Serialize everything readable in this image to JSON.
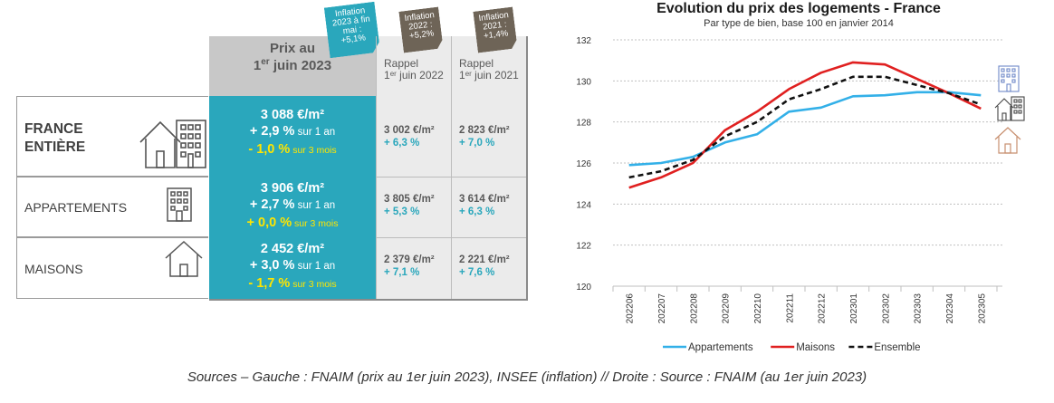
{
  "table": {
    "header_main_line1": "Prix au",
    "header_main_line2_num": "1",
    "header_main_line2_sup": "er",
    "header_main_line2_rest": " juin 2023",
    "rappel_2022_line1": "Rappel",
    "rappel_2022_num": "1",
    "rappel_2022_sup": "er",
    "rappel_2022_rest": " juin 2022",
    "rappel_2021_line1": "Rappel",
    "rappel_2021_num": "1",
    "rappel_2021_sup": "er",
    "rappel_2021_rest": " juin 2021",
    "tag_2023": [
      "Inflation",
      "2023 à fin",
      "mai :",
      "+5,1%"
    ],
    "tag_2022": [
      "Inflation",
      "2022 :",
      "+5,2%"
    ],
    "tag_2021": [
      "Inflation",
      "2021 :",
      "+1,4%"
    ],
    "rows": [
      {
        "label_line1": "FRANCE",
        "label_line2": "ENTIÈRE",
        "price": "3 088 €/m²",
        "pct_year": "+ 2,9 %",
        "pct_year_suffix": " sur 1 an",
        "pct_3m": "- 1,0 %",
        "pct_3m_suffix": " sur 3 mois",
        "r2022_price": "3 002 €/m²",
        "r2022_pct": "+ 6,3 %",
        "r2021_price": "2 823 €/m²",
        "r2021_pct": "+ 7,0 %"
      },
      {
        "label": "APPARTEMENTS",
        "price": "3 906 €/m²",
        "pct_year": "+ 2,7 %",
        "pct_year_suffix": " sur 1 an",
        "pct_3m": "+ 0,0 %",
        "pct_3m_suffix": " sur 3 mois",
        "r2022_price": "3 805 €/m²",
        "r2022_pct": "+ 5,3 %",
        "r2021_price": "3 614 €/m²",
        "r2021_pct": "+ 6,3 %"
      },
      {
        "label": "MAISONS",
        "price": "2 452 €/m²",
        "pct_year": "+ 3,0 %",
        "pct_year_suffix": " sur 1 an",
        "pct_3m": "- 1,7 %",
        "pct_3m_suffix": " sur 3 mois",
        "r2022_price": "2 379 €/m²",
        "r2022_pct": "+ 7,1 %",
        "r2021_price": "2 221 €/m²",
        "r2021_pct": "+ 7,6 %"
      }
    ]
  },
  "chart_data": {
    "type": "line",
    "title": "Evolution du prix des logements - France",
    "subtitle": "Par type de bien, base 100 en janvier 2014",
    "x": [
      "202206",
      "202207",
      "202208",
      "202209",
      "202210",
      "202211",
      "202212",
      "202301",
      "202302",
      "202303",
      "202304",
      "202305"
    ],
    "ylim": [
      120,
      132
    ],
    "yticks": [
      120,
      122,
      124,
      126,
      128,
      130,
      132
    ],
    "grid": true,
    "legend_position": "bottom",
    "series": [
      {
        "name": "Appartements",
        "color": "#33b0e8",
        "dash": "solid",
        "values": [
          125.9,
          126.0,
          126.3,
          127.0,
          127.4,
          128.5,
          128.7,
          129.25,
          129.3,
          129.45,
          129.45,
          129.3
        ]
      },
      {
        "name": "Maisons",
        "color": "#e02020",
        "dash": "solid",
        "values": [
          124.8,
          125.3,
          126.0,
          127.6,
          128.5,
          129.6,
          130.4,
          130.9,
          130.8,
          130.1,
          129.4,
          128.65
        ]
      },
      {
        "name": "Ensemble",
        "color": "#111111",
        "dash": "dashed",
        "values": [
          125.3,
          125.6,
          126.15,
          127.3,
          128.0,
          129.1,
          129.6,
          130.2,
          130.2,
          129.8,
          129.4,
          128.85
        ]
      }
    ]
  },
  "footer": {
    "source": "Sources – Gauche : FNAIM (prix au 1er juin 2023), INSEE (inflation) // Droite : Source : FNAIM (au 1er juin 2023)"
  }
}
